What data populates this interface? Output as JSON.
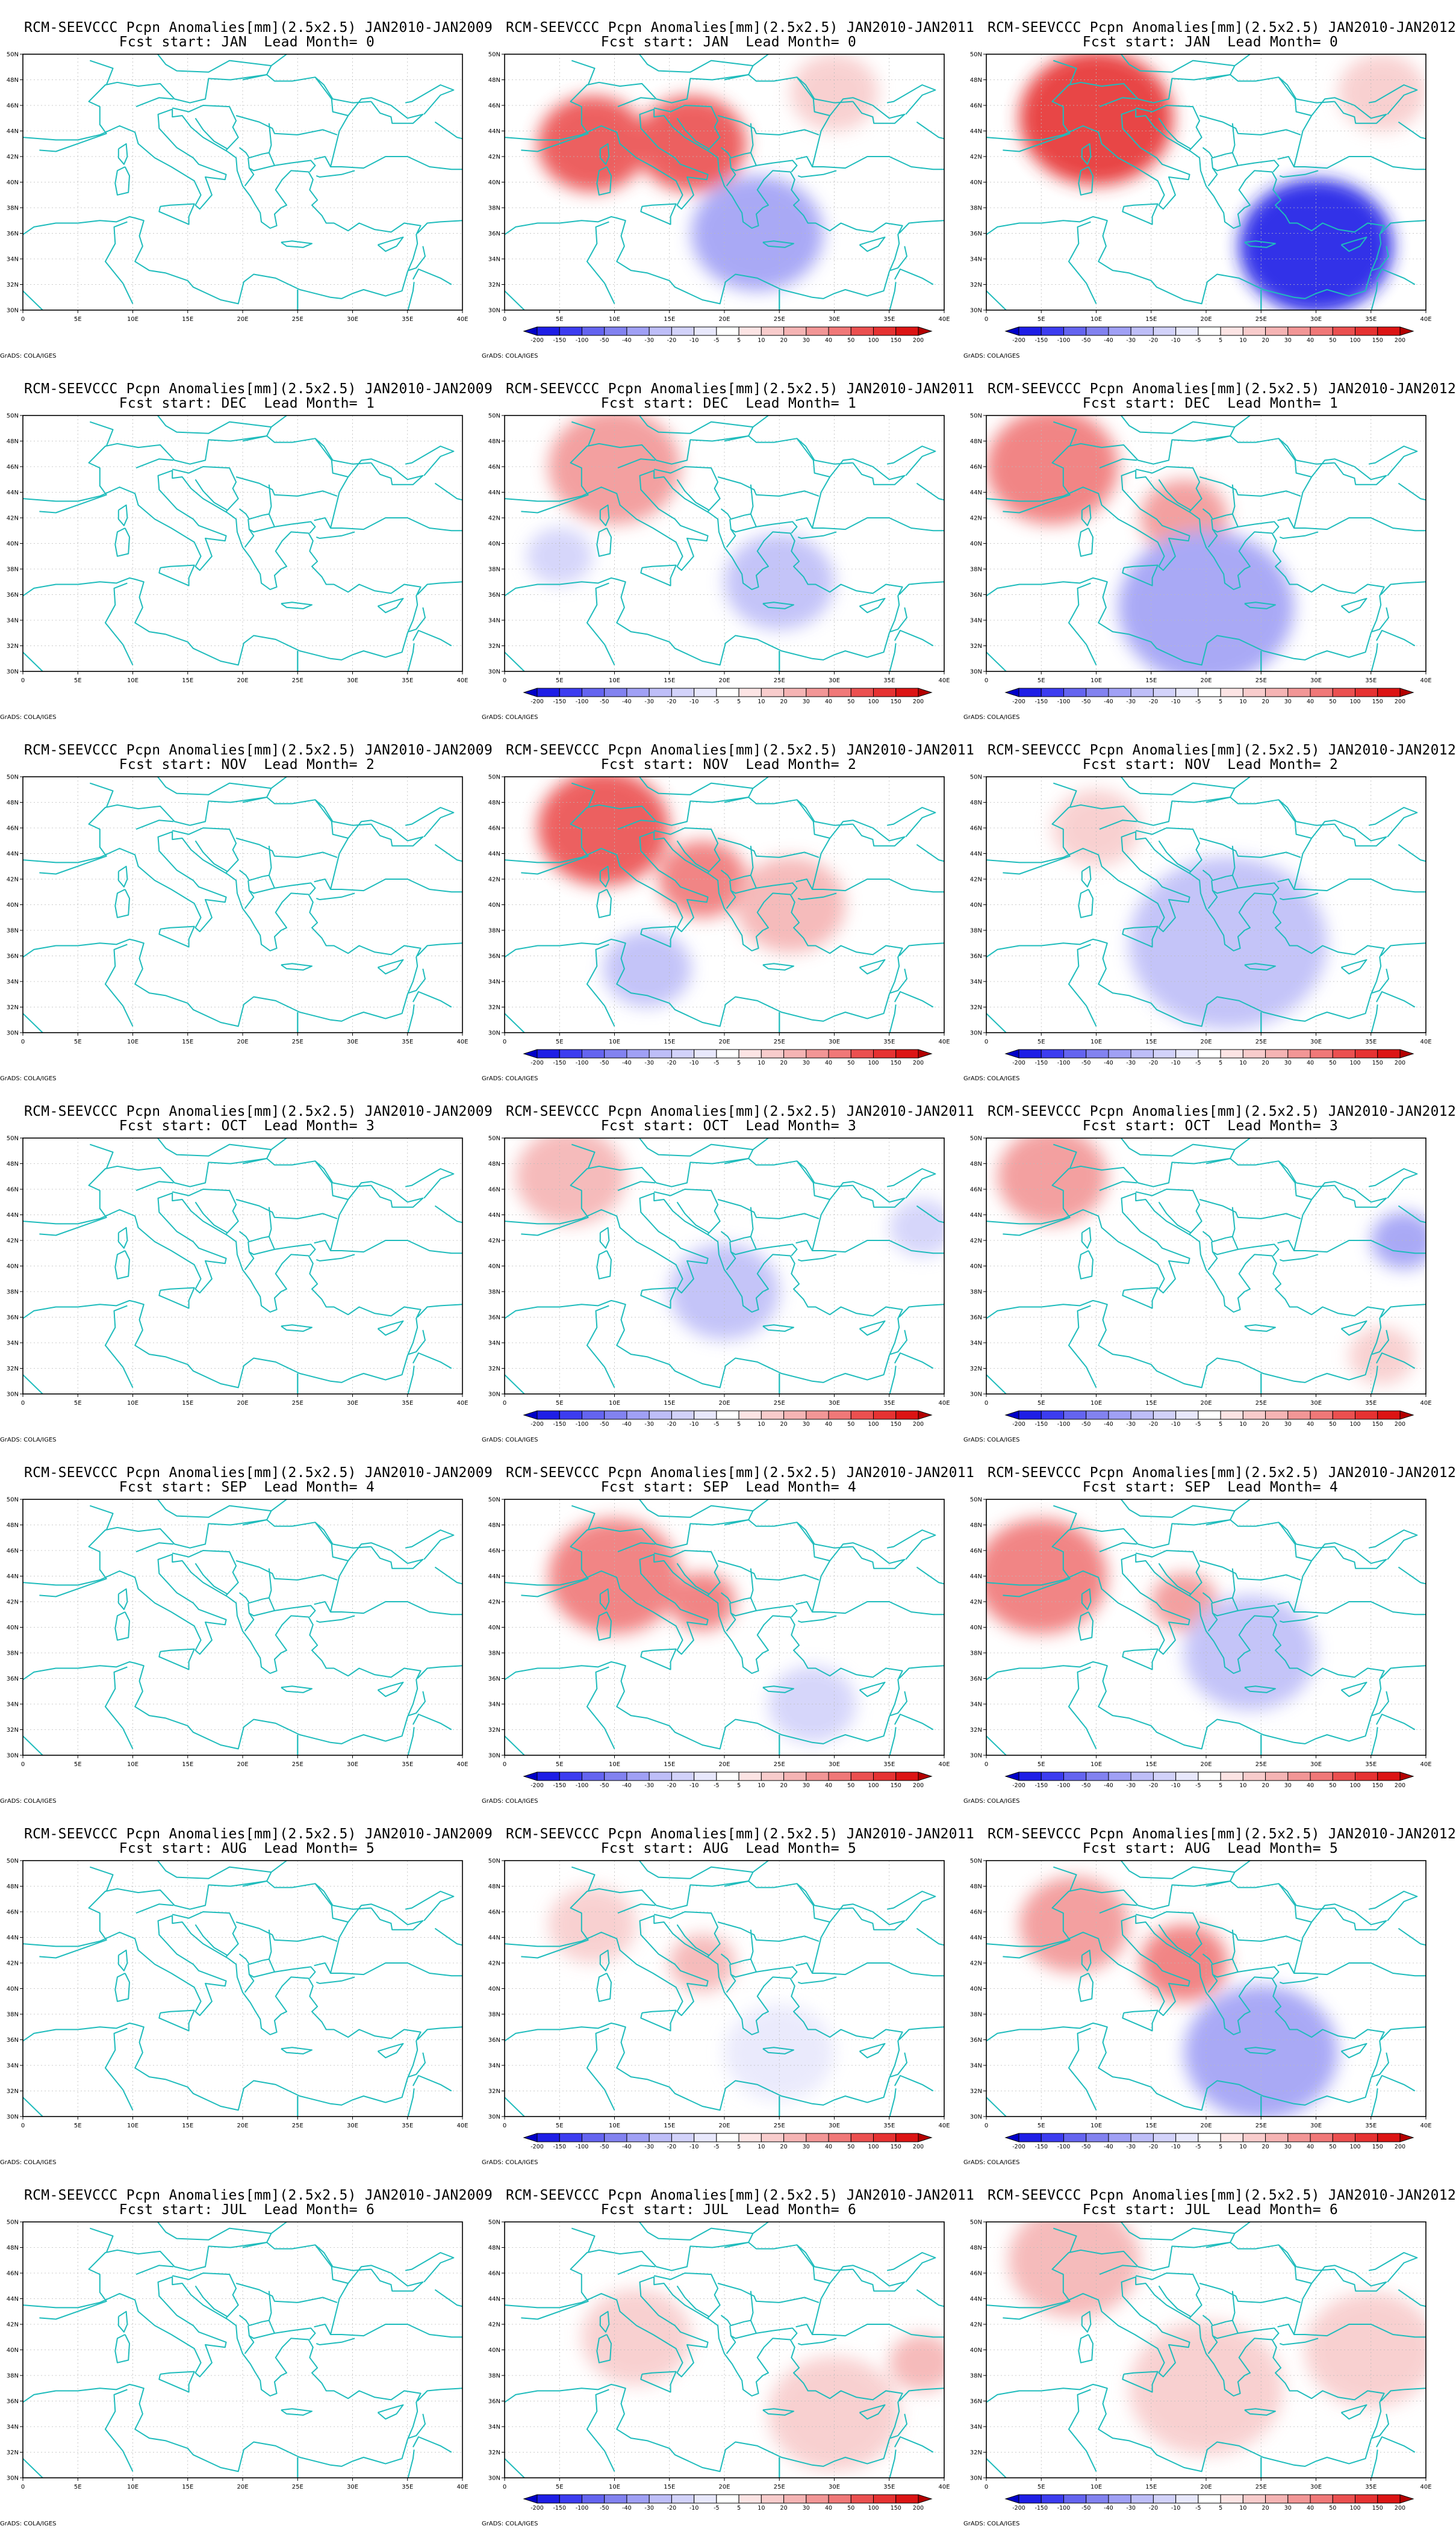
{
  "title_prefix": "RCM-SEEVCCC Pcpn Anomalies[mm](2.5x2.5)",
  "credit": "GrADS: COLA/IGES",
  "columns": [
    {
      "period": "JAN2010-JAN2009",
      "shaded": false
    },
    {
      "period": "JAN2010-JAN2011",
      "shaded": true
    },
    {
      "period": "JAN2010-JAN2012",
      "shaded": true
    }
  ],
  "rows": [
    {
      "start": "JAN",
      "lead": "0"
    },
    {
      "start": "DEC",
      "lead": "1"
    },
    {
      "start": "NOV",
      "lead": "2"
    },
    {
      "start": "OCT",
      "lead": "3"
    },
    {
      "start": "SEP",
      "lead": "4"
    },
    {
      "start": "AUG",
      "lead": "5"
    },
    {
      "start": "JUL",
      "lead": "6"
    }
  ],
  "subtitle_parts": {
    "fcst": "Fcst start:",
    "lead": "Lead Month="
  },
  "axes": {
    "lon_ticks": [
      "0",
      "5E",
      "10E",
      "15E",
      "20E",
      "25E",
      "30E",
      "35E",
      "40E"
    ],
    "lat_ticks": [
      "30N",
      "32N",
      "34N",
      "36N",
      "38N",
      "40N",
      "42N",
      "44N",
      "46N",
      "48N",
      "50N"
    ],
    "lon_range": [
      0,
      40
    ],
    "lat_range": [
      30,
      50
    ]
  },
  "colorbar": {
    "labels": [
      "-200",
      "-150",
      "-100",
      "-50",
      "-40",
      "-30",
      "-20",
      "-10",
      "-5",
      "5",
      "10",
      "20",
      "30",
      "40",
      "50",
      "100",
      "150",
      "200"
    ],
    "colors": [
      "#0000c8",
      "#1e1ee6",
      "#3c3cf0",
      "#6464f0",
      "#8282f0",
      "#a0a0f5",
      "#bebef8",
      "#d2d2fa",
      "#e8e8fc",
      "#ffffff",
      "#fce4e4",
      "#f8cccc",
      "#f5b4b4",
      "#f29696",
      "#f07878",
      "#eb5050",
      "#e63232",
      "#dc1414",
      "#b40000"
    ]
  },
  "coast_color": "#1fbcbc",
  "anomaly_blobs": [
    [],
    [
      [
        {
          "lon": 8,
          "lat": 43,
          "r": 5,
          "v": "+100"
        },
        {
          "lon": 17,
          "lat": 43,
          "r": 5,
          "v": "+100"
        },
        {
          "lon": 23,
          "lat": 36,
          "r": 6,
          "v": "-30"
        },
        {
          "lon": 30,
          "lat": 47,
          "r": 4,
          "v": "+20"
        }
      ],
      [
        {
          "lon": 10,
          "lat": 46,
          "r": 6,
          "v": "+40"
        },
        {
          "lon": 25,
          "lat": 37,
          "r": 5,
          "v": "-20"
        },
        {
          "lon": 5,
          "lat": 39,
          "r": 3,
          "v": "-10"
        }
      ],
      [
        {
          "lon": 9,
          "lat": 46,
          "r": 6,
          "v": "+100"
        },
        {
          "lon": 18,
          "lat": 42,
          "r": 4,
          "v": "+50"
        },
        {
          "lon": 26,
          "lat": 40,
          "r": 5,
          "v": "+30"
        },
        {
          "lon": 13,
          "lat": 35,
          "r": 4,
          "v": "-20"
        }
      ],
      [
        {
          "lon": 6,
          "lat": 47,
          "r": 5,
          "v": "+30"
        },
        {
          "lon": 20,
          "lat": 38,
          "r": 5,
          "v": "-20"
        },
        {
          "lon": 38,
          "lat": 43,
          "r": 3,
          "v": "-10"
        }
      ],
      [
        {
          "lon": 10,
          "lat": 44,
          "r": 6,
          "v": "+50"
        },
        {
          "lon": 18,
          "lat": 42,
          "r": 3,
          "v": "+50"
        },
        {
          "lon": 28,
          "lat": 34,
          "r": 4,
          "v": "-10"
        }
      ],
      [
        {
          "lon": 8,
          "lat": 45,
          "r": 4,
          "v": "+20"
        },
        {
          "lon": 18,
          "lat": 42,
          "r": 3,
          "v": "+30"
        },
        {
          "lon": 25,
          "lat": 35,
          "r": 5,
          "v": "-5"
        }
      ],
      [
        {
          "lon": 12,
          "lat": 41,
          "r": 5,
          "v": "+20"
        },
        {
          "lon": 30,
          "lat": 35,
          "r": 6,
          "v": "+20"
        },
        {
          "lon": 38,
          "lat": 39,
          "r": 3,
          "v": "+30"
        }
      ]
    ],
    [
      [
        {
          "lon": 10,
          "lat": 45,
          "r": 7,
          "v": "+150"
        },
        {
          "lon": 30,
          "lat": 35,
          "r": 7,
          "v": "-150"
        },
        {
          "lon": 36,
          "lat": 47,
          "r": 4,
          "v": "+20"
        }
      ],
      [
        {
          "lon": 6,
          "lat": 46,
          "r": 6,
          "v": "+50"
        },
        {
          "lon": 18,
          "lat": 42,
          "r": 4,
          "v": "+40"
        },
        {
          "lon": 20,
          "lat": 35,
          "r": 8,
          "v": "-30"
        }
      ],
      [
        {
          "lon": 10,
          "lat": 46,
          "r": 4,
          "v": "+20"
        },
        {
          "lon": 22,
          "lat": 37,
          "r": 9,
          "v": "-20"
        }
      ],
      [
        {
          "lon": 6,
          "lat": 47,
          "r": 5,
          "v": "+40"
        },
        {
          "lon": 38,
          "lat": 42,
          "r": 3,
          "v": "-30"
        },
        {
          "lon": 36,
          "lat": 33,
          "r": 3,
          "v": "+20"
        }
      ],
      [
        {
          "lon": 5,
          "lat": 44,
          "r": 6,
          "v": "+50"
        },
        {
          "lon": 18,
          "lat": 42,
          "r": 3,
          "v": "+40"
        },
        {
          "lon": 24,
          "lat": 38,
          "r": 6,
          "v": "-20"
        }
      ],
      [
        {
          "lon": 8,
          "lat": 45,
          "r": 5,
          "v": "+40"
        },
        {
          "lon": 18,
          "lat": 42,
          "r": 4,
          "v": "+50"
        },
        {
          "lon": 25,
          "lat": 35,
          "r": 7,
          "v": "-30"
        }
      ],
      [
        {
          "lon": 8,
          "lat": 47,
          "r": 6,
          "v": "+30"
        },
        {
          "lon": 20,
          "lat": 37,
          "r": 7,
          "v": "+20"
        },
        {
          "lon": 35,
          "lat": 40,
          "r": 6,
          "v": "+20"
        }
      ]
    ]
  ]
}
